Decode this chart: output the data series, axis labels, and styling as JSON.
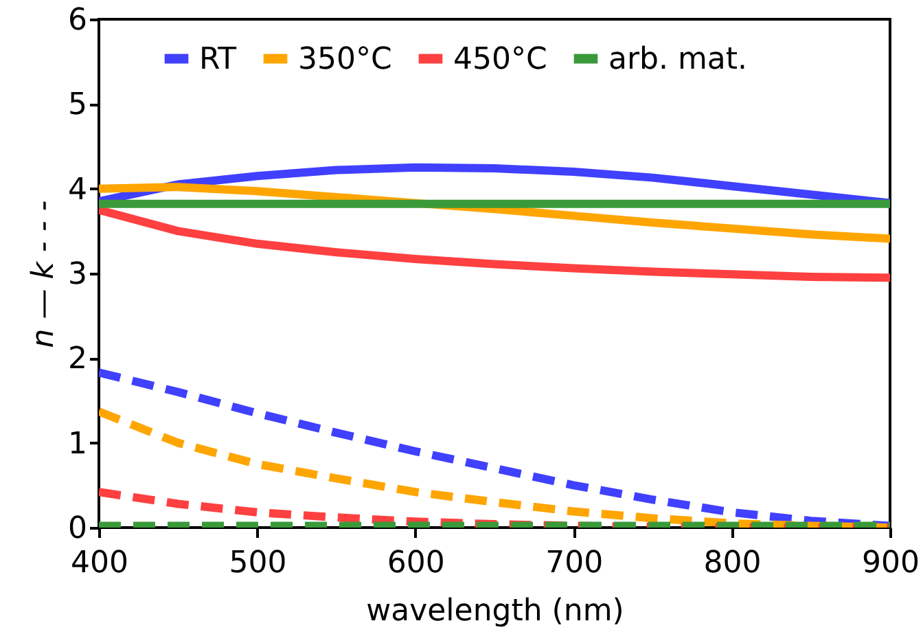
{
  "chart_data": {
    "type": "line",
    "xlabel": "wavelength (nm)",
    "ylabel": "n —  k - - -",
    "x": [
      400,
      450,
      500,
      550,
      600,
      650,
      700,
      750,
      800,
      850,
      900
    ],
    "series": [
      {
        "name": "RT",
        "color": "#4040ff",
        "line_style": "solid",
        "values": [
          3.85,
          4.05,
          4.15,
          4.22,
          4.25,
          4.24,
          4.2,
          4.13,
          4.03,
          3.93,
          3.83
        ]
      },
      {
        "name": "350°C",
        "color": "#ffa500",
        "line_style": "solid",
        "values": [
          4.0,
          4.02,
          3.97,
          3.9,
          3.83,
          3.76,
          3.68,
          3.6,
          3.53,
          3.46,
          3.41
        ]
      },
      {
        "name": "450°C",
        "color": "#ff4040",
        "line_style": "solid",
        "values": [
          3.75,
          3.5,
          3.35,
          3.25,
          3.17,
          3.11,
          3.06,
          3.02,
          2.99,
          2.96,
          2.95
        ]
      },
      {
        "name": "arb. mat.",
        "color": "#3a9a3a",
        "line_style": "solid",
        "values": [
          3.82,
          3.82,
          3.82,
          3.82,
          3.82,
          3.82,
          3.82,
          3.82,
          3.82,
          3.82,
          3.82
        ]
      },
      {
        "color": "#4040ff",
        "line_style": "dashed",
        "values": [
          1.83,
          1.6,
          1.35,
          1.12,
          0.9,
          0.7,
          0.5,
          0.33,
          0.18,
          0.08,
          0.02
        ]
      },
      {
        "color": "#ffa500",
        "line_style": "dashed",
        "values": [
          1.37,
          1.0,
          0.75,
          0.58,
          0.42,
          0.3,
          0.19,
          0.11,
          0.05,
          0.02,
          0.0
        ]
      },
      {
        "color": "#ff4040",
        "line_style": "dashed",
        "values": [
          0.42,
          0.28,
          0.18,
          0.12,
          0.07,
          0.04,
          0.02,
          0.01,
          0.0,
          0.0,
          0.0
        ]
      },
      {
        "color": "#3a9a3a",
        "line_style": "dashed",
        "values": [
          0.02,
          0.02,
          0.02,
          0.02,
          0.02,
          0.02,
          0.02,
          0.02,
          0.02,
          0.02,
          0.02
        ]
      }
    ],
    "xlim": [
      400,
      900
    ],
    "xticks": [
      400,
      500,
      600,
      700,
      800,
      900
    ],
    "ylim": [
      0,
      6
    ],
    "yticks": [
      0,
      1,
      2,
      3,
      4,
      5,
      6
    ],
    "grid": false,
    "legend": "top",
    "marker": "none"
  }
}
